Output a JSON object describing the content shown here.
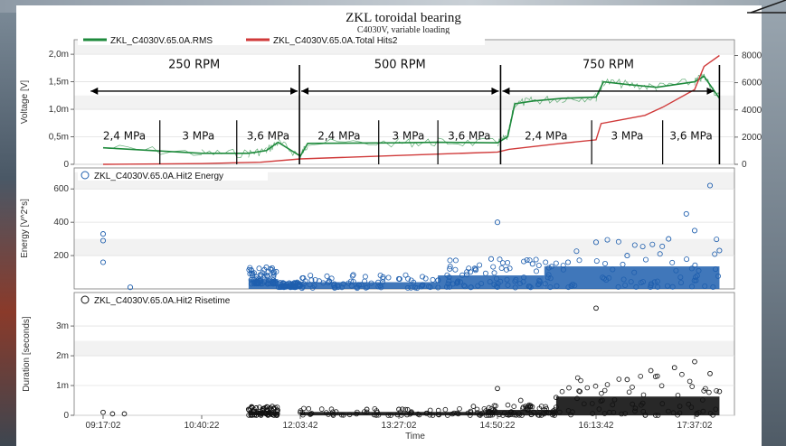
{
  "title": "ZKL toroidal bearing",
  "subtitle": "C4030V, variable loading",
  "chart_data": [
    {
      "type": "line",
      "ylabel": "Voltage [V]",
      "ylabel_right": "",
      "ylim": [
        0,
        0.0021
      ],
      "yticks": [
        "0",
        "0,5m",
        "1,0m",
        "1,5m",
        "2,0m"
      ],
      "ylim_right": [
        0,
        85000
      ],
      "yticks_right": [
        "0",
        "20000",
        "40000",
        "60000",
        "80000"
      ],
      "legend_placement": "top-left",
      "series": [
        {
          "name": "ZKL_C4030V.65.0A.RMS",
          "color": "#1e8a3c",
          "x": [
            "09:17:02",
            "10:40:22",
            "11:20:00",
            "11:35:00",
            "11:45:00",
            "12:03:42",
            "12:10:00",
            "13:27:02",
            "14:00:00",
            "14:50:22",
            "14:59:00",
            "15:05:00",
            "15:20:00",
            "15:45:00",
            "16:13:42",
            "16:20:00",
            "16:40:00",
            "17:05:00",
            "17:37:02",
            "17:45:00",
            "17:58:00"
          ],
          "y": [
            0.0003,
            0.0002,
            0.0002,
            0.00025,
            0.0004,
            0.00015,
            0.00038,
            0.00039,
            0.0004,
            0.00039,
            0.0005,
            0.0011,
            0.00115,
            0.0012,
            0.00122,
            0.0015,
            0.00145,
            0.0014,
            0.0015,
            0.0016,
            0.0012
          ]
        },
        {
          "name": "ZKL_C4030V.65.0A.Total Hits2",
          "color": "#d03a3a",
          "x": [
            "09:17:02",
            "10:40:22",
            "11:30:00",
            "12:03:42",
            "13:27:02",
            "14:50:22",
            "15:00:00",
            "15:40:00",
            "16:13:42",
            "16:18:00",
            "16:55:00",
            "17:10:00",
            "17:37:02",
            "17:45:00",
            "17:58:00"
          ],
          "y": [
            0,
            500,
            1500,
            4000,
            6500,
            9000,
            11000,
            15000,
            18000,
            30000,
            36000,
            42000,
            55000,
            72000,
            80000
          ]
        }
      ],
      "annotations": {
        "rpm": [
          "250 RPM",
          "500 RPM",
          "750 RPM"
        ],
        "mpa": [
          "2,4 MPa",
          "3 MPa",
          "3,6 MPa",
          "2,4 MPa",
          "3 MPa",
          "3,6 MPa",
          "2,4 MPa",
          "3 MPa",
          "3,6 MPa"
        ]
      }
    },
    {
      "type": "scatter",
      "ylabel": "Energy [V^2*s]",
      "ylim": [
        0,
        650
      ],
      "yticks": [
        "200",
        "400",
        "600"
      ],
      "series": [
        {
          "name": "ZKL_C4030V.65.0A.Hit2 Energy",
          "color": "#1f5fae",
          "x": [
            "09:17:02",
            "09:17:02",
            "09:17:02",
            "09:40:00",
            "11:25:00",
            "11:35:00",
            "12:03:42",
            "12:40:00",
            "13:27:02",
            "14:10:00",
            "14:45:00",
            "14:50:22",
            "15:20:00",
            "15:50:00",
            "16:13:42",
            "16:40:00",
            "17:15:00",
            "17:30:00",
            "17:37:02",
            "17:50:00",
            "17:58:00"
          ],
          "y": [
            330,
            290,
            160,
            10,
            40,
            130,
            20,
            30,
            60,
            120,
            180,
            400,
            150,
            160,
            280,
            200,
            300,
            450,
            350,
            620,
            230
          ]
        }
      ]
    },
    {
      "type": "scatter",
      "xlabel": "Time",
      "ylabel": "Duration [seconds]",
      "ylim": [
        0,
        0.0037
      ],
      "yticks": [
        "0",
        "1m",
        "2m",
        "3m"
      ],
      "xticks": [
        "09:17:02",
        "10:40:22",
        "12:03:42",
        "13:27:02",
        "14:50:22",
        "16:13:42",
        "17:37:02"
      ],
      "series": [
        {
          "name": "ZKL_C4030V.65.0A.Hit2 Risetime",
          "color": "#111111",
          "x": [
            "09:17:02",
            "09:25:00",
            "09:35:00",
            "11:20:00",
            "11:40:00",
            "12:03:42",
            "13:00:00",
            "13:27:02",
            "14:30:00",
            "14:50:22",
            "15:10:00",
            "15:40:00",
            "16:00:00",
            "16:13:42",
            "16:40:00",
            "17:00:00",
            "17:20:00",
            "17:37:02",
            "17:50:00",
            "17:58:00"
          ],
          "y": [
            0.0001,
            5e-05,
            5e-05,
            0.0002,
            0.0003,
            0.0001,
            0.0002,
            0.0002,
            0.0003,
            0.0009,
            0.0005,
            0.0006,
            0.0008,
            0.0036,
            0.0012,
            0.0015,
            0.0016,
            0.0018,
            0.0014,
            0.0008
          ]
        }
      ]
    }
  ]
}
